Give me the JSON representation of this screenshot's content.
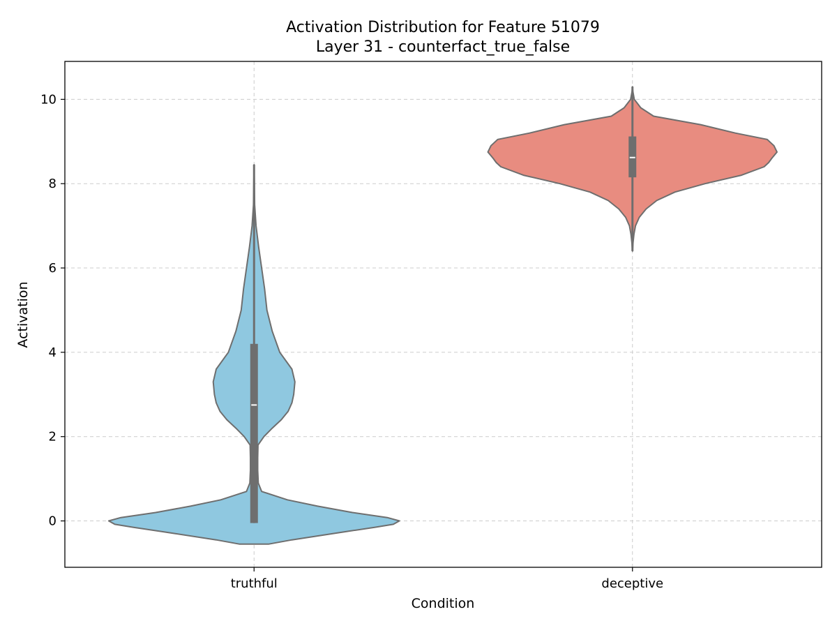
{
  "chart_data": {
    "type": "violin",
    "title": "Activation Distribution for Feature 51079",
    "subtitle": "Layer 31 - counterfact_true_false",
    "xlabel": "Condition",
    "ylabel": "Activation",
    "ylim": [
      -1.1,
      10.9
    ],
    "yticks": [
      0,
      2,
      4,
      6,
      8,
      10
    ],
    "categories": [
      "truthful",
      "deceptive"
    ],
    "grid": true,
    "series": [
      {
        "category": "truthful",
        "color": "#8FC8E0",
        "whisker": [
          -0.05,
          8.45
        ],
        "q1": -0.05,
        "median": 2.75,
        "q3": 4.2,
        "profile": [
          [
            -0.55,
            0.095
          ],
          [
            -0.45,
            0.25
          ],
          [
            -0.3,
            0.52
          ],
          [
            -0.15,
            0.8
          ],
          [
            -0.08,
            0.92
          ],
          [
            0.0,
            0.96
          ],
          [
            0.08,
            0.88
          ],
          [
            0.2,
            0.65
          ],
          [
            0.35,
            0.42
          ],
          [
            0.5,
            0.22
          ],
          [
            0.7,
            0.05
          ],
          [
            0.9,
            0.028
          ],
          [
            1.2,
            0.024
          ],
          [
            1.5,
            0.024
          ],
          [
            1.8,
            0.026
          ],
          [
            2.0,
            0.065
          ],
          [
            2.2,
            0.12
          ],
          [
            2.4,
            0.18
          ],
          [
            2.6,
            0.225
          ],
          [
            2.8,
            0.25
          ],
          [
            3.0,
            0.262
          ],
          [
            3.3,
            0.27
          ],
          [
            3.6,
            0.25
          ],
          [
            4.0,
            0.17
          ],
          [
            4.5,
            0.12
          ],
          [
            5.0,
            0.085
          ],
          [
            5.5,
            0.07
          ],
          [
            6.0,
            0.05
          ],
          [
            6.5,
            0.03
          ],
          [
            7.0,
            0.013
          ],
          [
            7.5,
            0.004
          ],
          [
            8.0,
            0.002
          ],
          [
            8.45,
            0.0
          ]
        ]
      },
      {
        "category": "deceptive",
        "color": "#E88C80",
        "whisker": [
          6.4,
          10.3
        ],
        "q1": 8.15,
        "median": 8.62,
        "q3": 9.12,
        "profile": [
          [
            6.4,
            0.0
          ],
          [
            6.6,
            0.004
          ],
          [
            6.8,
            0.01
          ],
          [
            7.0,
            0.02
          ],
          [
            7.2,
            0.045
          ],
          [
            7.4,
            0.09
          ],
          [
            7.6,
            0.16
          ],
          [
            7.8,
            0.28
          ],
          [
            8.0,
            0.48
          ],
          [
            8.2,
            0.72
          ],
          [
            8.4,
            0.87
          ],
          [
            8.5,
            0.9
          ],
          [
            8.6,
            0.92
          ],
          [
            8.75,
            0.955
          ],
          [
            8.9,
            0.935
          ],
          [
            9.05,
            0.89
          ],
          [
            9.2,
            0.68
          ],
          [
            9.4,
            0.45
          ],
          [
            9.6,
            0.14
          ],
          [
            9.8,
            0.055
          ],
          [
            10.0,
            0.012
          ],
          [
            10.2,
            0.002
          ],
          [
            10.3,
            0.0
          ]
        ]
      }
    ]
  }
}
